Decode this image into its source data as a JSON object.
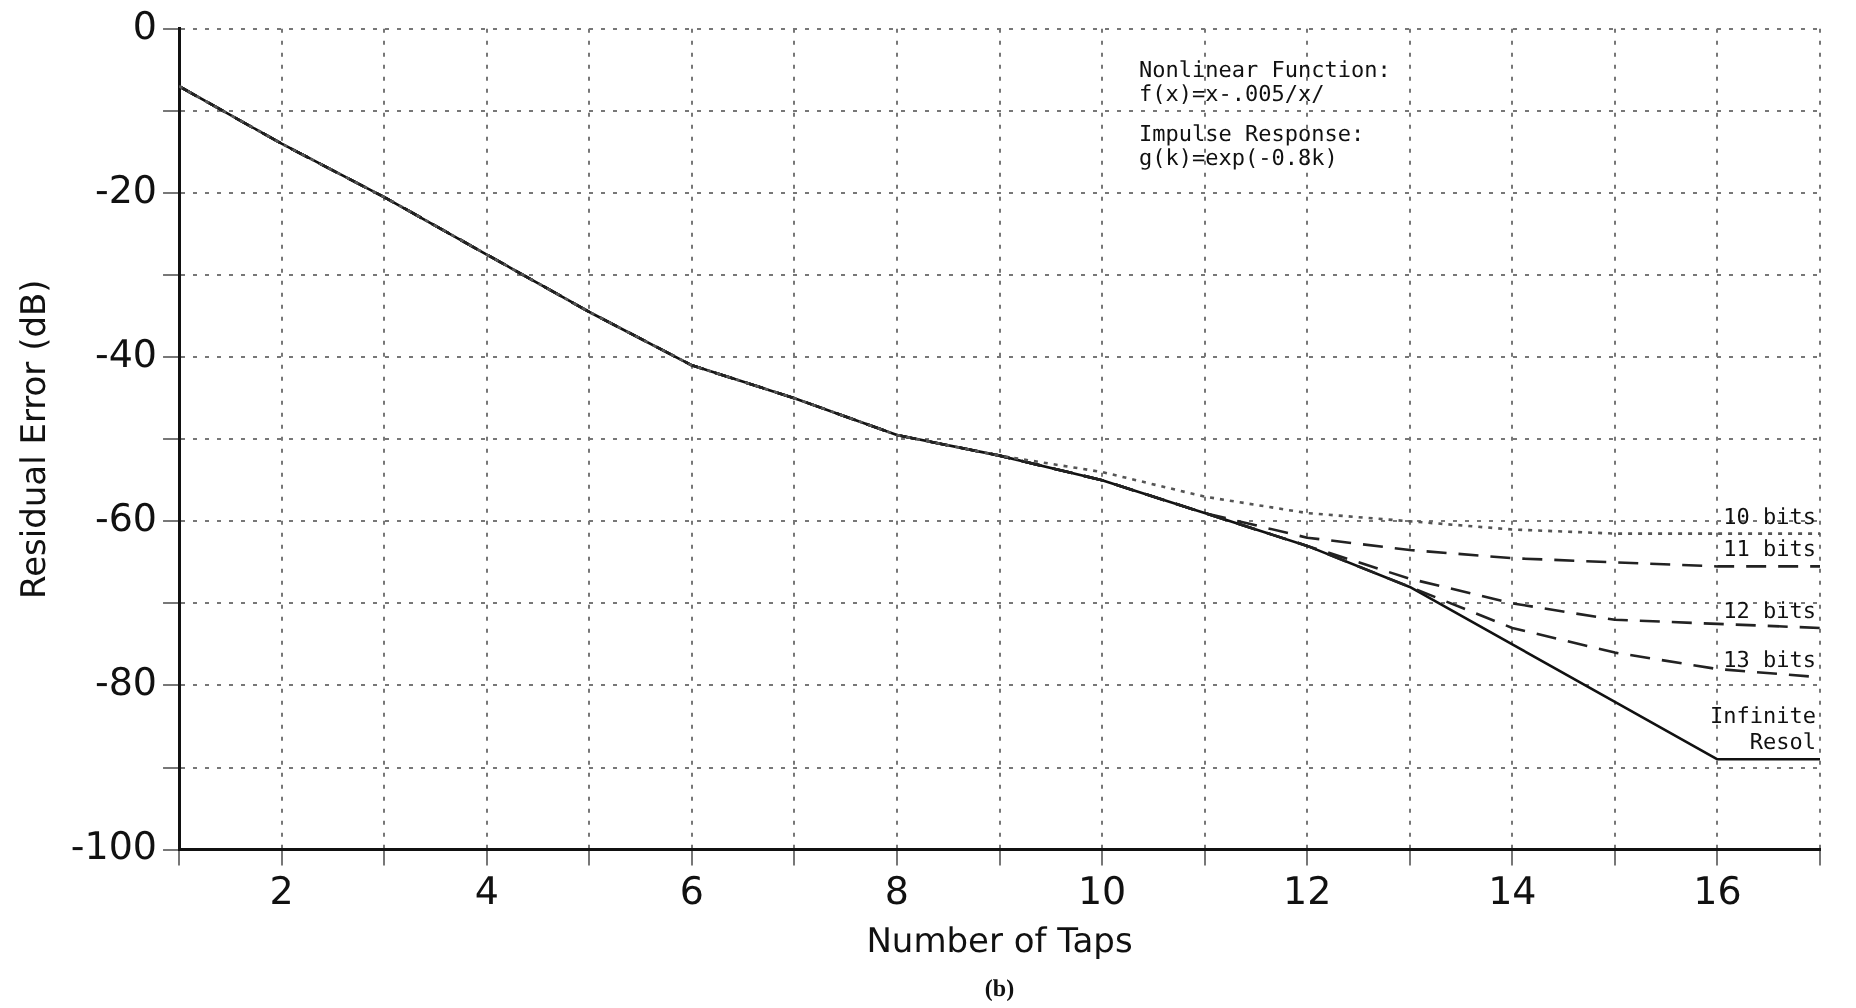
{
  "chart_data": {
    "type": "line",
    "xlabel": "Number of Taps",
    "ylabel": "Residual Error (dB)",
    "xlim": [
      1,
      17
    ],
    "ylim": [
      -100,
      0
    ],
    "xticks": [
      {
        "value": 1,
        "label": null
      },
      2,
      {
        "value": 3,
        "label": null
      },
      4,
      {
        "value": 5,
        "label": null
      },
      6,
      {
        "value": 7,
        "label": null
      },
      8,
      {
        "value": 9,
        "label": null
      },
      10,
      {
        "value": 11,
        "label": null
      },
      12,
      {
        "value": 13,
        "label": null
      },
      14,
      {
        "value": 15,
        "label": null
      },
      16,
      {
        "value": 17,
        "label": null
      }
    ],
    "yticks": [
      -100,
      {
        "value": -90,
        "label": null
      },
      -80,
      {
        "value": -70,
        "label": null
      },
      -60,
      {
        "value": -50,
        "label": null
      },
      -40,
      {
        "value": -30,
        "label": null
      },
      -20,
      {
        "value": -10,
        "label": null
      },
      0
    ],
    "x": [
      1,
      2,
      3,
      4,
      5,
      6,
      7,
      8,
      9,
      10,
      11,
      12,
      13,
      14,
      15,
      16,
      17
    ],
    "series": [
      {
        "name": "10 bits",
        "color": "#555555",
        "line_style": "dotted",
        "values": [
          -7,
          -14,
          -20.5,
          -27.5,
          -34.5,
          -41,
          -45,
          -49.5,
          -52,
          -54,
          -57,
          -59,
          -60,
          -61,
          -61.5,
          -61.5,
          -61.5
        ]
      },
      {
        "name": "11 bits",
        "color": "#222222",
        "line_style": "dashed",
        "values": [
          -7,
          -14,
          -20.5,
          -27.5,
          -34.5,
          -41,
          -45,
          -49.5,
          -52,
          -55,
          -59,
          -62,
          -63.5,
          -64.5,
          -65,
          -65.5,
          -65.5
        ]
      },
      {
        "name": "12 bits",
        "color": "#222222",
        "line_style": "dashed",
        "values": [
          -7,
          -14,
          -20.5,
          -27.5,
          -34.5,
          -41,
          -45,
          -49.5,
          -52,
          -55,
          -59,
          -63,
          -67,
          -70,
          -72,
          -72.5,
          -73
        ]
      },
      {
        "name": "13 bits",
        "color": "#222222",
        "line_style": "dashed",
        "values": [
          -7,
          -14,
          -20.5,
          -27.5,
          -34.5,
          -41,
          -45,
          -49.5,
          -52,
          -55,
          -59,
          -63,
          -68,
          -73,
          -76,
          -78,
          -79
        ]
      },
      {
        "name": "Infinite Resol",
        "color": "#111111",
        "line_style": "solid",
        "values": [
          -7,
          -14,
          -20.5,
          -27.5,
          -34.5,
          -41,
          -45,
          -49.5,
          -52,
          -55,
          -59,
          -63,
          -68,
          -75,
          -82,
          -89,
          -89
        ]
      }
    ],
    "annotations": [
      "Nonlinear Function:",
      "f(x)=x-.005/x/",
      "Impulse Response:",
      "g(k)=exp(-0.8k)",
      "(b)"
    ],
    "grid": true,
    "legend": false,
    "marker": "none"
  }
}
